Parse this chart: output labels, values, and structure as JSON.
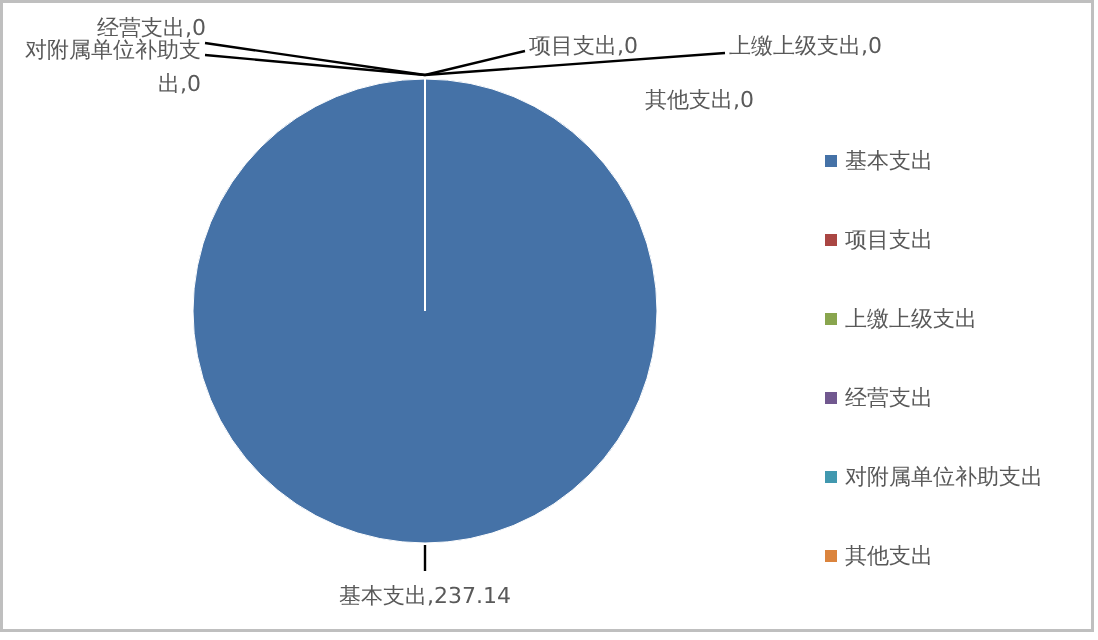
{
  "chart_data": {
    "type": "pie",
    "categories": [
      "基本支出",
      "项目支出",
      "上缴上级支出",
      "经营支出",
      "对附属单位补助支出",
      "其他支出"
    ],
    "values": [
      237.14,
      0,
      0,
      0,
      0,
      0
    ],
    "colors": [
      "#4572a7",
      "#aa4643",
      "#89a54e",
      "#71588f",
      "#4198af",
      "#db843d"
    ],
    "value_labels": [
      "基本支出,237.14",
      "项目支出,0",
      "上缴上级支出,0",
      "经营支出,0",
      "对附属单位补助支出,0",
      "其他支出,0"
    ],
    "legend": "right"
  }
}
